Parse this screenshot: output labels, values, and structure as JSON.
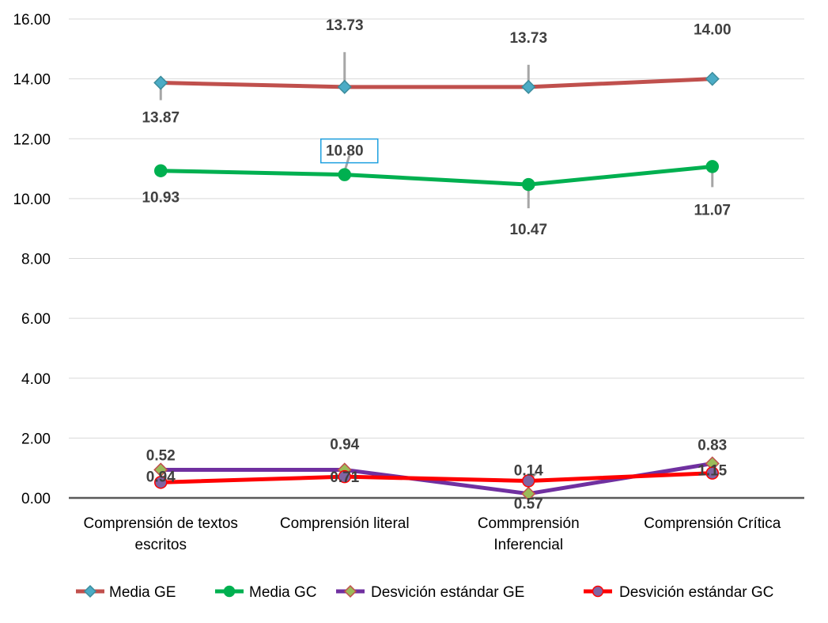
{
  "chart_data": {
    "type": "line",
    "title": "",
    "xlabel": "",
    "ylabel": "",
    "ylim": [
      0,
      16
    ],
    "yticks": [
      "0.00",
      "2.00",
      "4.00",
      "6.00",
      "8.00",
      "10.00",
      "12.00",
      "14.00",
      "16.00"
    ],
    "grid": "horizontal",
    "legend_position": "bottom",
    "categories": [
      [
        "Comprensión de textos",
        "escritos"
      ],
      [
        "Comprensión literal"
      ],
      [
        "Commprensión",
        "Inferencial"
      ],
      [
        "Comprensión Crítica"
      ]
    ],
    "series": [
      {
        "name": "Media GE",
        "values": [
          13.87,
          13.73,
          13.73,
          14.0
        ],
        "labels": [
          "13.87",
          "13.73",
          "13.73",
          "14.00"
        ],
        "color": "#c0504d",
        "marker": "diamond",
        "marker_color": "#4bacc6"
      },
      {
        "name": "Media GC",
        "values": [
          10.93,
          10.8,
          10.47,
          11.07
        ],
        "labels": [
          "10.93",
          "10.80",
          "10.47",
          "11.07"
        ],
        "color": "#00b050",
        "marker": "circle",
        "marker_color": "#00b050"
      },
      {
        "name": "Desvición estándar GE",
        "values": [
          0.94,
          0.94,
          0.14,
          1.15
        ],
        "labels": [
          "0.94",
          "0.94",
          "0.14",
          "1.15"
        ],
        "color": "#7030a0",
        "marker": "diamond",
        "marker_color": "#9bbb59"
      },
      {
        "name": "Desvición estándar GC",
        "values": [
          0.52,
          0.71,
          0.57,
          0.83
        ],
        "labels": [
          "0.52",
          "0.71",
          "0.57",
          "0.83"
        ],
        "color": "#ff0000",
        "marker": "circle",
        "marker_color": "#8064a2"
      }
    ]
  }
}
